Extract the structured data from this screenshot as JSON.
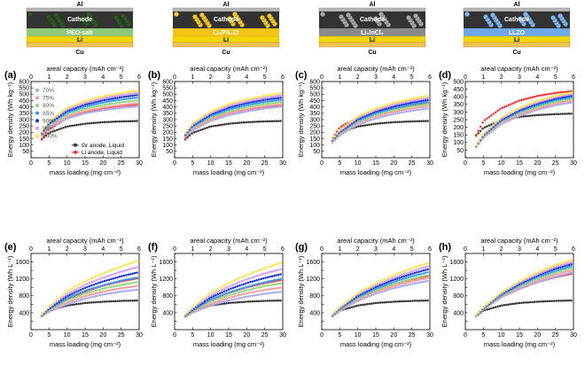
{
  "colors": {
    "al": "#b8b8b8",
    "li": "#f2d600",
    "cu": "#f2c25a",
    "sep_peo": "#8fc87a",
    "sep_lps": "#f5c318",
    "sep_licl": "#8a8a8a",
    "sep_llzo": "#6ea8e8",
    "cathode_bg": "#333333"
  },
  "diagrams": [
    {
      "al": "Al",
      "cathode": "Cathode",
      "sep": "PEO-salt",
      "li": "Li",
      "cu": "Cu",
      "sep_color_key": "sep_peo",
      "particle": "#2c5a23"
    },
    {
      "al": "Al",
      "cathode": "Cathode",
      "sep": "Li₆PS₅Cl",
      "li": "Li",
      "cu": "Cu",
      "sep_color_key": "sep_lps",
      "particle": "#f2c82a"
    },
    {
      "al": "Al",
      "cathode": "Cathode",
      "sep": "Li₃InCl₆",
      "li": "Li",
      "cu": "Cu",
      "sep_color_key": "sep_licl",
      "particle": "#a6a6a6"
    },
    {
      "al": "Al",
      "cathode": "Cathode",
      "sep": "LLZO",
      "li": "Li",
      "cu": "Cu",
      "sep_color_key": "sep_llzo",
      "particle": "#7fb6f2"
    }
  ],
  "legend": {
    "series": [
      "70%",
      "75%",
      "80%",
      "85%",
      "90%",
      "95%",
      "100%"
    ],
    "colors": [
      "#a5a8f2",
      "#ff9a9a",
      "#8fd67a",
      "#3399ff",
      "#1a33cc",
      "#d49aff",
      "#ffe64d"
    ],
    "refs": [
      "Gr anode, Liquid",
      "Li  anode, Liquid"
    ],
    "ref_colors": [
      "#333333",
      "#ff2e2e"
    ]
  },
  "chart_data": [
    {
      "panel": "(a)",
      "type": "scatter",
      "title": "",
      "top_axis_label": "areal capacity (mAh cm⁻²)",
      "xlabel": "mass loading (mg cm⁻²)",
      "ylabel": "Energy density (Wh kg⁻¹)",
      "xlim": [
        0,
        30
      ],
      "ylim": [
        0,
        600
      ],
      "top_lim": [
        0,
        6
      ],
      "x": [
        3,
        5,
        10,
        15,
        20,
        25,
        30
      ],
      "series": [
        {
          "name": "Gr anode, Liquid",
          "values": [
            145,
            196,
            246,
            268,
            280,
            286,
            290
          ]
        },
        {
          "name": "Li anode, Liquid",
          "values": [
            150,
            225,
            310,
            360,
            390,
            408,
            420
          ]
        },
        {
          "name": "70%",
          "values": [
            175,
            235,
            310,
            350,
            375,
            393,
            405
          ]
        },
        {
          "name": "75%",
          "values": [
            180,
            245,
            325,
            368,
            395,
            415,
            430
          ]
        },
        {
          "name": "80%",
          "values": [
            185,
            255,
            340,
            385,
            415,
            437,
            452
          ]
        },
        {
          "name": "85%",
          "values": [
            190,
            265,
            355,
            402,
            435,
            458,
            475
          ]
        },
        {
          "name": "90%",
          "values": [
            195,
            272,
            368,
            418,
            452,
            477,
            495
          ]
        },
        {
          "name": "95%",
          "values": [
            200,
            280,
            380,
            432,
            468,
            494,
            512
          ]
        },
        {
          "name": "100%",
          "values": [
            205,
            288,
            392,
            446,
            484,
            511,
            530
          ]
        }
      ]
    },
    {
      "panel": "(b)",
      "type": "scatter",
      "title": "",
      "top_axis_label": "areal capacity (mAh cm⁻²)",
      "xlabel": "mass loading (mg cm⁻²)",
      "ylabel": "Energy density (Wh kg⁻¹)",
      "xlim": [
        0,
        30
      ],
      "ylim": [
        0,
        600
      ],
      "top_lim": [
        0,
        6
      ],
      "x": [
        3,
        5,
        10,
        15,
        20,
        25,
        30
      ],
      "series": [
        {
          "name": "Gr anode, Liquid",
          "values": [
            145,
            196,
            246,
            268,
            280,
            286,
            290
          ]
        },
        {
          "name": "Li anode, Liquid",
          "values": [
            150,
            220,
            300,
            350,
            380,
            400,
            412
          ]
        },
        {
          "name": "70%",
          "values": [
            165,
            215,
            290,
            335,
            365,
            388,
            405
          ]
        },
        {
          "name": "75%",
          "values": [
            170,
            225,
            303,
            350,
            382,
            405,
            422
          ]
        },
        {
          "name": "80%",
          "values": [
            175,
            235,
            316,
            365,
            398,
            422,
            440
          ]
        },
        {
          "name": "85%",
          "values": [
            180,
            244,
            328,
            380,
            414,
            439,
            458
          ]
        },
        {
          "name": "90%",
          "values": [
            185,
            253,
            340,
            394,
            430,
            456,
            475
          ]
        },
        {
          "name": "95%",
          "values": [
            190,
            261,
            352,
            408,
            445,
            472,
            492
          ]
        },
        {
          "name": "100%",
          "values": [
            195,
            270,
            364,
            422,
            460,
            488,
            510
          ]
        }
      ]
    },
    {
      "panel": "(c)",
      "type": "scatter",
      "title": "",
      "top_axis_label": "areal capacity (mAh cm⁻²)",
      "xlabel": "mass loading (mg cm⁻²)",
      "ylabel": "Energy density (Wh kg⁻¹)",
      "xlim": [
        0,
        30
      ],
      "ylim": [
        0,
        600
      ],
      "top_lim": [
        0,
        6
      ],
      "x": [
        3,
        5,
        10,
        15,
        20,
        25,
        30
      ],
      "series": [
        {
          "name": "Gr anode, Liquid",
          "values": [
            145,
            196,
            246,
            268,
            280,
            286,
            290
          ]
        },
        {
          "name": "Li anode, Liquid",
          "values": [
            155,
            240,
            315,
            360,
            390,
            412,
            430
          ]
        },
        {
          "name": "70%",
          "values": [
            120,
            175,
            260,
            310,
            345,
            370,
            390
          ]
        },
        {
          "name": "75%",
          "values": [
            125,
            183,
            272,
            325,
            362,
            388,
            410
          ]
        },
        {
          "name": "80%",
          "values": [
            130,
            190,
            283,
            338,
            376,
            404,
            426
          ]
        },
        {
          "name": "85%",
          "values": [
            135,
            197,
            293,
            350,
            390,
            420,
            442
          ]
        },
        {
          "name": "90%",
          "values": [
            140,
            204,
            304,
            363,
            404,
            434,
            458
          ]
        },
        {
          "name": "95%",
          "values": [
            145,
            211,
            314,
            375,
            418,
            449,
            474
          ]
        },
        {
          "name": "100%",
          "values": [
            150,
            218,
            325,
            388,
            432,
            464,
            490
          ]
        }
      ]
    },
    {
      "panel": "(d)",
      "type": "scatter",
      "title": "",
      "top_axis_label": "areal capacity (mAh cm⁻²)",
      "xlabel": "mass loading (mg cm⁻²)",
      "ylabel": "Energy density (Wh kg⁻¹)",
      "xlim": [
        0,
        30
      ],
      "ylim": [
        0,
        500
      ],
      "top_lim": [
        0,
        6
      ],
      "x": [
        3,
        5,
        10,
        15,
        20,
        25,
        30
      ],
      "series": [
        {
          "name": "Gr anode, Liquid",
          "values": [
            145,
            196,
            246,
            268,
            280,
            286,
            290
          ]
        },
        {
          "name": "Li anode, Liquid",
          "values": [
            150,
            240,
            325,
            375,
            405,
            425,
            438
          ]
        },
        {
          "name": "70%",
          "values": [
            70,
            130,
            220,
            275,
            315,
            345,
            365
          ]
        },
        {
          "name": "75%",
          "values": [
            72,
            135,
            228,
            285,
            325,
            355,
            378
          ]
        },
        {
          "name": "80%",
          "values": [
            74,
            140,
            236,
            294,
            335,
            366,
            390
          ]
        },
        {
          "name": "85%",
          "values": [
            76,
            144,
            243,
            303,
            345,
            377,
            400
          ]
        },
        {
          "name": "90%",
          "values": [
            78,
            148,
            250,
            311,
            355,
            387,
            410
          ]
        },
        {
          "name": "95%",
          "values": [
            80,
            152,
            257,
            320,
            364,
            397,
            420
          ]
        },
        {
          "name": "100%",
          "values": [
            82,
            156,
            264,
            328,
            373,
            406,
            430
          ]
        }
      ]
    },
    {
      "panel": "(e)",
      "type": "scatter",
      "title": "",
      "top_axis_label": "areal capacity (mAh cm⁻²)",
      "xlabel": "mass loading (mg cm⁻²)",
      "ylabel": "Energy density (Wh L⁻¹)",
      "xlim": [
        0,
        30
      ],
      "ylim": [
        0,
        1800
      ],
      "top_lim": [
        0,
        6
      ],
      "x": [
        3,
        5,
        10,
        15,
        20,
        25,
        30
      ],
      "series": [
        {
          "name": "Gr anode, Liquid",
          "values": [
            320,
            450,
            570,
            630,
            660,
            680,
            690
          ]
        },
        {
          "name": "Li anode, Liquid",
          "values": [
            330,
            480,
            720,
            900,
            1040,
            1140,
            1220
          ]
        },
        {
          "name": "70%",
          "values": [
            310,
            420,
            600,
            730,
            830,
            900,
            950
          ]
        },
        {
          "name": "75%",
          "values": [
            320,
            440,
            640,
            790,
            900,
            980,
            1040
          ]
        },
        {
          "name": "80%",
          "values": [
            330,
            460,
            690,
            850,
            970,
            1060,
            1130
          ]
        },
        {
          "name": "85%",
          "values": [
            340,
            480,
            740,
            920,
            1050,
            1160,
            1240
          ]
        },
        {
          "name": "90%",
          "values": [
            350,
            500,
            790,
            990,
            1140,
            1260,
            1360
          ]
        },
        {
          "name": "95%",
          "values": [
            360,
            520,
            840,
            1060,
            1230,
            1370,
            1490
          ]
        },
        {
          "name": "100%",
          "values": [
            370,
            545,
            900,
            1140,
            1330,
            1490,
            1640
          ]
        }
      ]
    },
    {
      "panel": "(f)",
      "type": "scatter",
      "title": "",
      "top_axis_label": "areal capacity (mAh cm⁻²)",
      "xlabel": "mass loading (mg cm⁻²)",
      "ylabel": "Energy density (Wh L⁻¹)",
      "xlim": [
        0,
        30
      ],
      "ylim": [
        0,
        1800
      ],
      "top_lim": [
        0,
        6
      ],
      "x": [
        3,
        5,
        10,
        15,
        20,
        25,
        30
      ],
      "series": [
        {
          "name": "Gr anode, Liquid",
          "values": [
            320,
            450,
            570,
            630,
            660,
            680,
            690
          ]
        },
        {
          "name": "Li anode, Liquid",
          "values": [
            330,
            470,
            700,
            870,
            1000,
            1100,
            1180
          ]
        },
        {
          "name": "70%",
          "values": [
            300,
            400,
            570,
            690,
            780,
            850,
            900
          ]
        },
        {
          "name": "75%",
          "values": [
            310,
            420,
            610,
            750,
            860,
            940,
            1000
          ]
        },
        {
          "name": "80%",
          "values": [
            320,
            440,
            660,
            810,
            930,
            1030,
            1100
          ]
        },
        {
          "name": "85%",
          "values": [
            330,
            460,
            710,
            880,
            1010,
            1120,
            1210
          ]
        },
        {
          "name": "90%",
          "values": [
            340,
            480,
            760,
            950,
            1100,
            1220,
            1320
          ]
        },
        {
          "name": "95%",
          "values": [
            350,
            500,
            810,
            1020,
            1190,
            1330,
            1440
          ]
        },
        {
          "name": "100%",
          "values": [
            360,
            525,
            870,
            1100,
            1290,
            1450,
            1600
          ]
        }
      ]
    },
    {
      "panel": "(g)",
      "type": "scatter",
      "title": "",
      "top_axis_label": "areal capacity (mAh cm⁻²)",
      "xlabel": "mass loading (mg cm⁻²)",
      "ylabel": "Energy density (Wh L⁻¹)",
      "xlim": [
        0,
        30
      ],
      "ylim": [
        0,
        1800
      ],
      "top_lim": [
        0,
        6
      ],
      "x": [
        3,
        5,
        10,
        15,
        20,
        25,
        30
      ],
      "series": [
        {
          "name": "Gr anode, Liquid",
          "values": [
            320,
            450,
            570,
            630,
            660,
            680,
            690
          ]
        },
        {
          "name": "Li anode, Liquid",
          "values": [
            330,
            480,
            740,
            930,
            1080,
            1190,
            1280
          ]
        },
        {
          "name": "70%",
          "values": [
            310,
            440,
            680,
            850,
            980,
            1080,
            1160
          ]
        },
        {
          "name": "75%",
          "values": [
            320,
            455,
            710,
            890,
            1030,
            1140,
            1230
          ]
        },
        {
          "name": "80%",
          "values": [
            330,
            470,
            740,
            930,
            1080,
            1200,
            1300
          ]
        },
        {
          "name": "85%",
          "values": [
            340,
            485,
            770,
            970,
            1130,
            1260,
            1370
          ]
        },
        {
          "name": "90%",
          "values": [
            350,
            500,
            800,
            1010,
            1180,
            1320,
            1440
          ]
        },
        {
          "name": "95%",
          "values": [
            360,
            515,
            830,
            1050,
            1230,
            1380,
            1510
          ]
        },
        {
          "name": "100%",
          "values": [
            370,
            530,
            860,
            1100,
            1290,
            1450,
            1590
          ]
        }
      ]
    },
    {
      "panel": "(h)",
      "type": "scatter",
      "title": "",
      "top_axis_label": "areal capacity (mAh cm⁻²)",
      "xlabel": "mass loading (mg cm⁻²)",
      "ylabel": "Energy density (Wh L⁻¹)",
      "xlim": [
        0,
        30
      ],
      "ylim": [
        0,
        1800
      ],
      "top_lim": [
        0,
        6
      ],
      "x": [
        3,
        5,
        10,
        15,
        20,
        25,
        30
      ],
      "series": [
        {
          "name": "Gr anode, Liquid",
          "values": [
            320,
            450,
            570,
            630,
            660,
            680,
            690
          ]
        },
        {
          "name": "Li anode, Liquid",
          "values": [
            330,
            490,
            770,
            970,
            1120,
            1240,
            1330
          ]
        },
        {
          "name": "70%",
          "values": [
            320,
            470,
            760,
            960,
            1120,
            1250,
            1360
          ]
        },
        {
          "name": "75%",
          "values": [
            325,
            480,
            780,
            990,
            1160,
            1300,
            1410
          ]
        },
        {
          "name": "80%",
          "values": [
            330,
            490,
            800,
            1020,
            1200,
            1350,
            1460
          ]
        },
        {
          "name": "85%",
          "values": [
            335,
            500,
            820,
            1050,
            1240,
            1390,
            1510
          ]
        },
        {
          "name": "90%",
          "values": [
            340,
            510,
            840,
            1080,
            1280,
            1440,
            1560
          ]
        },
        {
          "name": "95%",
          "values": [
            345,
            520,
            860,
            1110,
            1310,
            1480,
            1610
          ]
        },
        {
          "name": "100%",
          "values": [
            350,
            530,
            880,
            1140,
            1350,
            1530,
            1660
          ]
        }
      ]
    }
  ]
}
